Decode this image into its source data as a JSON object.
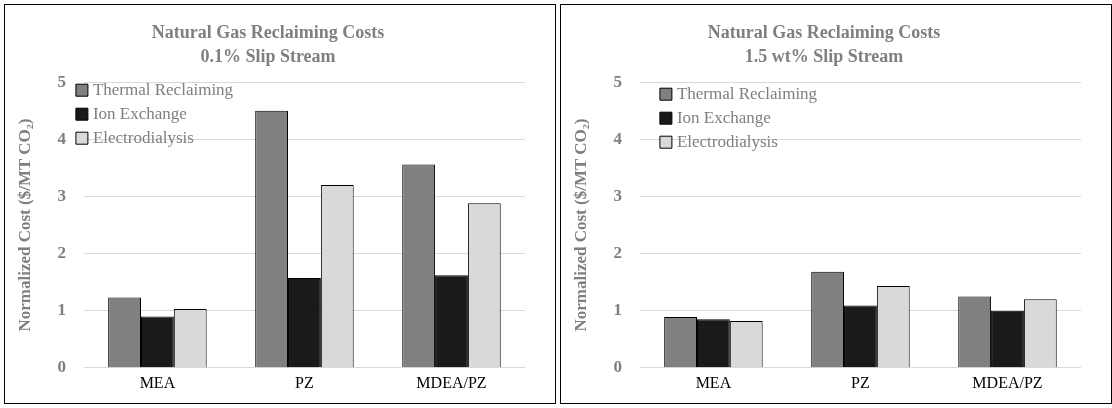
{
  "chart_data": [
    {
      "type": "bar",
      "title": "Natural Gas Reclaiming Costs",
      "subtitle": "0.1% Slip Stream",
      "ylabel": "Normalized Cost ($/MT CO₂)",
      "categories": [
        "MEA",
        "PZ",
        "MDEA/PZ"
      ],
      "series": [
        {
          "name": "Thermal Reclaiming",
          "color": "#808080",
          "values": [
            1.23,
            4.5,
            3.56
          ]
        },
        {
          "name": "Ion Exchange",
          "color": "#1a1a1a",
          "values": [
            0.9,
            1.57,
            1.62
          ]
        },
        {
          "name": "Electrodialysis",
          "color": "#d9d9d9",
          "values": [
            1.03,
            3.2,
            2.88
          ]
        }
      ],
      "ylim": [
        0,
        5
      ],
      "yticks": [
        0,
        1,
        2,
        3,
        4,
        5
      ],
      "grid": "y",
      "legend": "top left"
    },
    {
      "type": "bar",
      "title": "Natural Gas Reclaiming Costs",
      "subtitle": "1.5 wt% Slip Stream",
      "ylabel": "Normalized Cost ($/MT CO₂)",
      "categories": [
        "MEA",
        "PZ",
        "MDEA/PZ"
      ],
      "series": [
        {
          "name": "Thermal Reclaiming",
          "color": "#808080",
          "values": [
            0.89,
            1.68,
            1.25
          ]
        },
        {
          "name": "Ion Exchange",
          "color": "#1a1a1a",
          "values": [
            0.85,
            1.09,
            1.0
          ]
        },
        {
          "name": "Electrodialysis",
          "color": "#d9d9d9",
          "values": [
            0.82,
            1.43,
            1.2
          ]
        }
      ],
      "ylim": [
        0,
        5
      ],
      "yticks": [
        0,
        1,
        2,
        3,
        4,
        5
      ],
      "grid": "y",
      "legend": "top left"
    }
  ]
}
